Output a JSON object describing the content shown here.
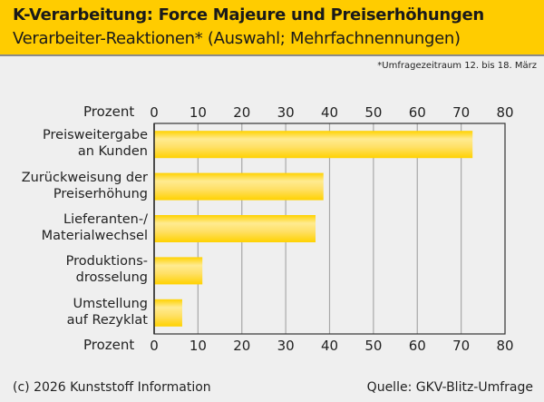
{
  "header": {
    "title": "K-Verarbeitung: Force Majeure und Preiserhöhungen",
    "subtitle": "Verarbeiter-Reaktionen* (Auswahl; Mehrfachnennungen)"
  },
  "note": "*Umfragezeitraum 12. bis 18. März",
  "footer": {
    "copyright": "(c) 2026 Kunststoff Information",
    "source": "Quelle: GKV-Blitz-Umfrage"
  },
  "colors": {
    "header": "#ffcc00",
    "bar_edge": "#ffd200",
    "bar_light": "#ffeb91"
  },
  "chart_data": {
    "type": "bar",
    "orientation": "horizontal",
    "title": "K-Verarbeitung: Force Majeure und Preiserhöhungen",
    "xlabel": "Prozent",
    "categories": [
      [
        "Preisweitergabe",
        "an Kunden"
      ],
      [
        "Zurückweisung der",
        "Preiserhöhung"
      ],
      [
        "Lieferanten-/",
        "Materialwechsel"
      ],
      [
        "Produktions-",
        "drosselung"
      ],
      [
        "Umstellung",
        "auf Rezyklat"
      ]
    ],
    "values": [
      72.6,
      38.6,
      36.8,
      11.0,
      6.4
    ],
    "xlim": [
      0,
      80
    ],
    "ticks": [
      "0",
      "10",
      "20",
      "30",
      "40",
      "50",
      "60",
      "70",
      "80"
    ],
    "grid": true
  }
}
